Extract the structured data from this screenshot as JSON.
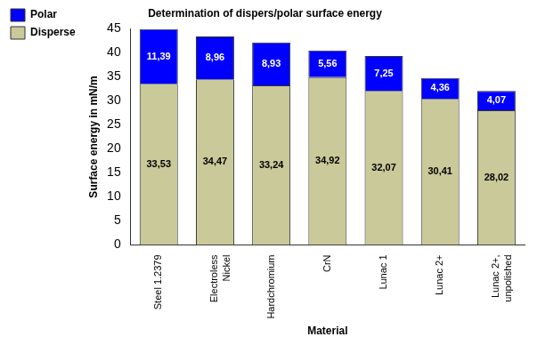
{
  "chart_data": {
    "type": "bar",
    "title": "Determination of dispers/polar surface energy",
    "x_label": "Material",
    "y_label": "Surface energy in mN/m",
    "categories": [
      "Steel 1.2379",
      "Electroless Nickel",
      "Hardchromium",
      "CrN",
      "Lunac 1",
      "Lunac 2+",
      "Lunac 2+, unpolished"
    ],
    "series": [
      {
        "name": "Disperse",
        "color": "#c9c99a",
        "values": [
          33.53,
          34.47,
          33.24,
          34.92,
          32.07,
          30.41,
          28.02
        ],
        "value_labels": [
          "33,53",
          "34,47",
          "33,24",
          "34,92",
          "32,07",
          "30,41",
          "28,02"
        ]
      },
      {
        "name": "Polar",
        "color": "#0000ff",
        "values": [
          11.39,
          8.96,
          8.93,
          5.56,
          7.25,
          4.36,
          4.07
        ],
        "value_labels": [
          "11,39",
          "8,96",
          "8,93",
          "5,56",
          "7,25",
          "4,36",
          "4,07"
        ]
      }
    ],
    "ylim": [
      0,
      45
    ],
    "yticks": [
      0,
      5,
      10,
      15,
      20,
      25,
      30,
      35,
      40,
      45
    ],
    "stacked": true,
    "data_labels": true,
    "grid": false,
    "legend": "top-left"
  }
}
